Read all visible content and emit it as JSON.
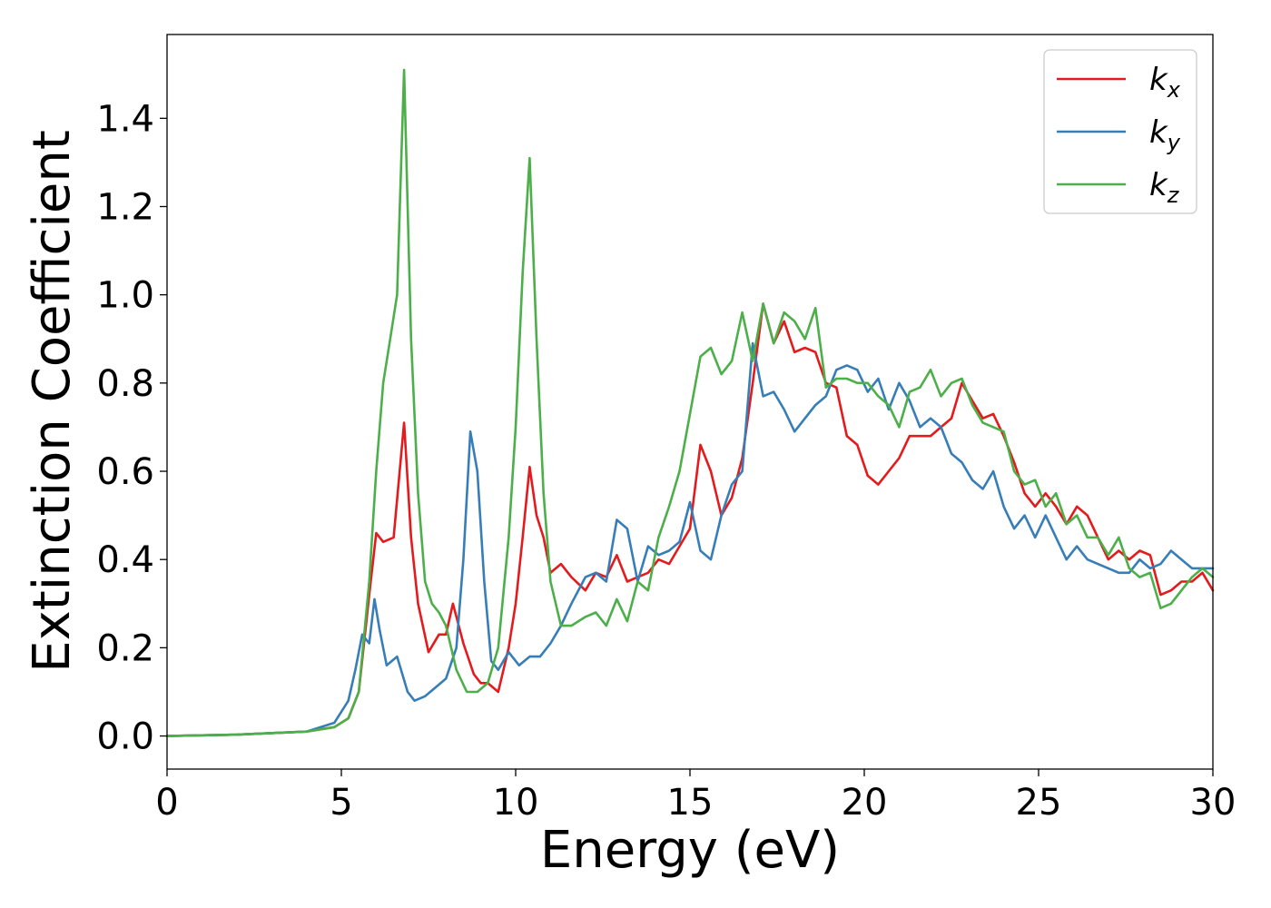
{
  "chart_data": {
    "type": "line",
    "xlabel": "Energy (eV)",
    "ylabel": "Extinction Coefficient",
    "xlim": [
      0,
      30
    ],
    "ylim": [
      -0.075,
      1.59
    ],
    "xticks": [
      "0",
      "5",
      "10",
      "15",
      "20",
      "25",
      "30"
    ],
    "yticks": [
      "0.0",
      "0.2",
      "0.4",
      "0.6",
      "0.8",
      "1.0",
      "1.2",
      "1.4"
    ],
    "grid": false,
    "legend_position": "top-right",
    "series": [
      {
        "name": "k",
        "subscript": "x",
        "color": "#e41a1c",
        "x": [
          0,
          2,
          4,
          4.8,
          5.2,
          5.5,
          5.8,
          6.0,
          6.2,
          6.5,
          6.8,
          7.0,
          7.2,
          7.5,
          7.8,
          8.0,
          8.2,
          8.5,
          8.8,
          9.0,
          9.2,
          9.5,
          9.8,
          10.0,
          10.2,
          10.4,
          10.6,
          10.8,
          11.0,
          11.3,
          11.6,
          12.0,
          12.3,
          12.6,
          12.9,
          13.2,
          13.5,
          13.8,
          14.1,
          14.4,
          14.7,
          15.0,
          15.3,
          15.6,
          15.9,
          16.2,
          16.5,
          16.8,
          17.1,
          17.4,
          17.7,
          18.0,
          18.3,
          18.6,
          18.9,
          19.2,
          19.5,
          19.8,
          20.1,
          20.4,
          20.7,
          21.0,
          21.3,
          21.6,
          21.9,
          22.2,
          22.5,
          22.8,
          23.1,
          23.4,
          23.7,
          24.0,
          24.3,
          24.6,
          24.9,
          25.2,
          25.5,
          25.8,
          26.1,
          26.4,
          26.7,
          27.0,
          27.3,
          27.6,
          27.9,
          28.2,
          28.5,
          28.8,
          29.1,
          29.4,
          29.7,
          30.0
        ],
        "y": [
          0.0,
          0.003,
          0.01,
          0.02,
          0.04,
          0.1,
          0.32,
          0.46,
          0.44,
          0.45,
          0.71,
          0.45,
          0.3,
          0.19,
          0.23,
          0.23,
          0.3,
          0.21,
          0.14,
          0.12,
          0.12,
          0.1,
          0.2,
          0.3,
          0.45,
          0.61,
          0.5,
          0.45,
          0.37,
          0.39,
          0.36,
          0.33,
          0.37,
          0.36,
          0.41,
          0.35,
          0.36,
          0.37,
          0.4,
          0.39,
          0.43,
          0.47,
          0.66,
          0.6,
          0.5,
          0.54,
          0.63,
          0.8,
          0.98,
          0.89,
          0.94,
          0.87,
          0.88,
          0.87,
          0.8,
          0.79,
          0.68,
          0.66,
          0.59,
          0.57,
          0.6,
          0.63,
          0.68,
          0.68,
          0.68,
          0.7,
          0.72,
          0.8,
          0.76,
          0.72,
          0.73,
          0.68,
          0.62,
          0.55,
          0.52,
          0.55,
          0.52,
          0.48,
          0.52,
          0.5,
          0.45,
          0.4,
          0.42,
          0.4,
          0.42,
          0.41,
          0.32,
          0.33,
          0.35,
          0.35,
          0.37,
          0.33
        ]
      },
      {
        "name": "k",
        "subscript": "y",
        "color": "#377eb8",
        "x": [
          0,
          2,
          4,
          4.8,
          5.2,
          5.4,
          5.6,
          5.8,
          5.95,
          6.1,
          6.3,
          6.6,
          6.9,
          7.1,
          7.4,
          7.7,
          8.0,
          8.3,
          8.5,
          8.7,
          8.9,
          9.1,
          9.3,
          9.5,
          9.8,
          10.1,
          10.4,
          10.7,
          11.0,
          11.3,
          11.6,
          12.0,
          12.3,
          12.6,
          12.9,
          13.2,
          13.5,
          13.8,
          14.1,
          14.4,
          14.7,
          15.0,
          15.3,
          15.6,
          15.9,
          16.2,
          16.5,
          16.8,
          17.1,
          17.4,
          17.7,
          18.0,
          18.3,
          18.6,
          18.9,
          19.2,
          19.5,
          19.8,
          20.1,
          20.4,
          20.7,
          21.0,
          21.3,
          21.6,
          21.9,
          22.2,
          22.5,
          22.8,
          23.1,
          23.4,
          23.7,
          24.0,
          24.3,
          24.6,
          24.9,
          25.2,
          25.5,
          25.8,
          26.1,
          26.4,
          26.7,
          27.0,
          27.3,
          27.6,
          27.9,
          28.2,
          28.5,
          28.8,
          29.1,
          29.4,
          29.7,
          30.0
        ],
        "y": [
          0.0,
          0.003,
          0.01,
          0.03,
          0.08,
          0.15,
          0.23,
          0.21,
          0.31,
          0.24,
          0.16,
          0.18,
          0.1,
          0.08,
          0.09,
          0.11,
          0.13,
          0.2,
          0.4,
          0.69,
          0.6,
          0.35,
          0.17,
          0.15,
          0.19,
          0.16,
          0.18,
          0.18,
          0.21,
          0.25,
          0.3,
          0.36,
          0.37,
          0.35,
          0.49,
          0.47,
          0.35,
          0.43,
          0.41,
          0.42,
          0.44,
          0.53,
          0.42,
          0.4,
          0.5,
          0.57,
          0.6,
          0.89,
          0.77,
          0.78,
          0.74,
          0.69,
          0.72,
          0.75,
          0.77,
          0.83,
          0.84,
          0.83,
          0.78,
          0.81,
          0.74,
          0.8,
          0.76,
          0.7,
          0.72,
          0.7,
          0.64,
          0.62,
          0.58,
          0.56,
          0.6,
          0.52,
          0.47,
          0.5,
          0.45,
          0.5,
          0.45,
          0.4,
          0.43,
          0.4,
          0.39,
          0.38,
          0.37,
          0.37,
          0.4,
          0.38,
          0.39,
          0.42,
          0.4,
          0.38,
          0.38,
          0.38
        ]
      },
      {
        "name": "k",
        "subscript": "z",
        "color": "#4daf4a",
        "x": [
          0,
          2,
          4,
          4.8,
          5.2,
          5.5,
          5.8,
          6.0,
          6.2,
          6.4,
          6.6,
          6.8,
          7.0,
          7.2,
          7.4,
          7.6,
          7.8,
          8.0,
          8.3,
          8.6,
          8.9,
          9.2,
          9.5,
          9.8,
          10.0,
          10.2,
          10.4,
          10.6,
          10.8,
          11.0,
          11.3,
          11.6,
          12.0,
          12.3,
          12.6,
          12.9,
          13.2,
          13.5,
          13.8,
          14.1,
          14.4,
          14.7,
          15.0,
          15.3,
          15.6,
          15.9,
          16.2,
          16.5,
          16.8,
          17.1,
          17.4,
          17.7,
          18.0,
          18.3,
          18.6,
          18.9,
          19.2,
          19.5,
          19.8,
          20.1,
          20.4,
          20.7,
          21.0,
          21.3,
          21.6,
          21.9,
          22.2,
          22.5,
          22.8,
          23.1,
          23.4,
          23.7,
          24.0,
          24.3,
          24.6,
          24.9,
          25.2,
          25.5,
          25.8,
          26.1,
          26.4,
          26.7,
          27.0,
          27.3,
          27.6,
          27.9,
          28.2,
          28.5,
          28.8,
          29.1,
          29.4,
          29.7,
          30.0
        ],
        "y": [
          0.0,
          0.003,
          0.01,
          0.02,
          0.04,
          0.1,
          0.35,
          0.6,
          0.8,
          0.9,
          1.0,
          1.51,
          0.9,
          0.55,
          0.35,
          0.3,
          0.28,
          0.25,
          0.15,
          0.1,
          0.1,
          0.12,
          0.2,
          0.45,
          0.7,
          1.05,
          1.31,
          0.9,
          0.55,
          0.35,
          0.25,
          0.25,
          0.27,
          0.28,
          0.25,
          0.31,
          0.26,
          0.35,
          0.33,
          0.45,
          0.52,
          0.6,
          0.73,
          0.86,
          0.88,
          0.82,
          0.85,
          0.96,
          0.85,
          0.98,
          0.89,
          0.96,
          0.94,
          0.9,
          0.97,
          0.79,
          0.81,
          0.81,
          0.8,
          0.8,
          0.77,
          0.75,
          0.7,
          0.78,
          0.79,
          0.83,
          0.77,
          0.8,
          0.81,
          0.75,
          0.71,
          0.7,
          0.69,
          0.6,
          0.57,
          0.58,
          0.52,
          0.55,
          0.48,
          0.5,
          0.45,
          0.45,
          0.41,
          0.45,
          0.38,
          0.36,
          0.37,
          0.29,
          0.3,
          0.33,
          0.36,
          0.38,
          0.36
        ]
      }
    ]
  }
}
